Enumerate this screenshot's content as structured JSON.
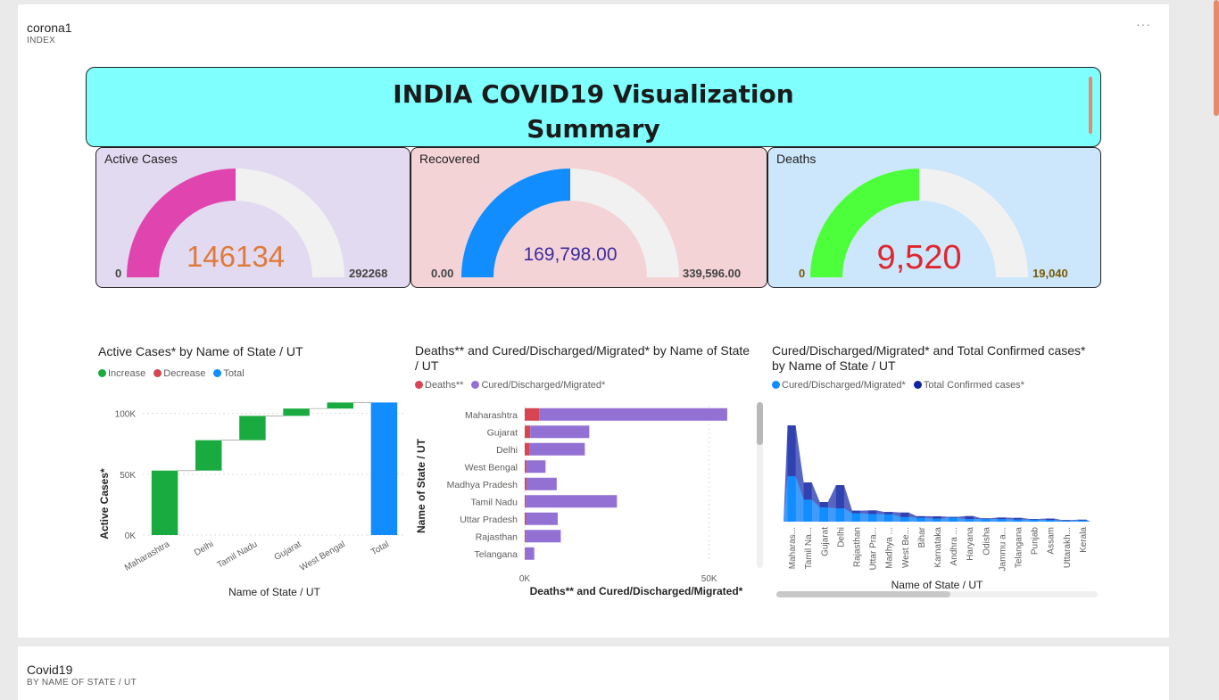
{
  "page": {
    "title": "corona1",
    "subtitle": "INDEX",
    "more_options": "···"
  },
  "banner": {
    "line1": "INDIA COVID19 Visualization",
    "line2": "Summary"
  },
  "kpis": [
    {
      "title": "Active Cases",
      "value": "146134",
      "min": "0",
      "max": "292268",
      "fraction": 0.5,
      "color": "#e044ae",
      "bg": "#e2daf1",
      "value_color": "#e07a3a"
    },
    {
      "title": "Recovered",
      "value": "169,798.00",
      "min": "0.00",
      "max": "339,596.00",
      "fraction": 0.5,
      "color": "#118dff",
      "bg": "#f4d3d6",
      "value_color": "#3b2c9e"
    },
    {
      "title": "Deaths",
      "value": "9,520",
      "min": "0",
      "max": "19,040",
      "fraction": 0.5,
      "color": "#4dff3a",
      "bg": "#cce6fc",
      "value_color": "#e0262d"
    }
  ],
  "chart_data": [
    {
      "type": "bar",
      "subtype": "waterfall",
      "title": "Active Cases* by Name of State / UT",
      "legend": [
        {
          "label": "Increase",
          "color": "#1aab40"
        },
        {
          "label": "Decrease",
          "color": "#d64550"
        },
        {
          "label": "Total",
          "color": "#118dff"
        }
      ],
      "categories": [
        "Maharashtra",
        "Delhi",
        "Tamil Nadu",
        "Gujarat",
        "West Bengal",
        "Total"
      ],
      "values": [
        53000,
        25000,
        20000,
        6000,
        5000,
        109000
      ],
      "xlabel": "Name of State / UT",
      "ylabel": "Active Cases*",
      "yticks": [
        {
          "value": 0,
          "label": "0K"
        },
        {
          "value": 50000,
          "label": "50K"
        },
        {
          "value": 100000,
          "label": "100K"
        }
      ],
      "ylim": [
        0,
        110000
      ]
    },
    {
      "type": "bar",
      "orientation": "horizontal",
      "stacked": true,
      "title": "Deaths** and Cured/Discharged/Migrated* by Name of State / UT",
      "legend": [
        {
          "label": "Deaths**",
          "color": "#d64550"
        },
        {
          "label": "Cured/Discharged/Migrated*",
          "color": "#9370d4"
        }
      ],
      "categories": [
        "Maharashtra",
        "Gujarat",
        "Delhi",
        "West Bengal",
        "Madhya Pradesh",
        "Tamil Nadu",
        "Uttar Pradesh",
        "Rajasthan",
        "Telangana"
      ],
      "series": [
        {
          "name": "Deaths**",
          "values": [
            3900,
            1500,
            1300,
            450,
            470,
            300,
            350,
            270,
            180
          ]
        },
        {
          "name": "Cured/Discharged/Migrated*",
          "values": [
            51000,
            16000,
            15000,
            5200,
            8200,
            24700,
            8600,
            9500,
            2400
          ]
        }
      ],
      "xlabel": "Deaths** and Cured/Discharged/Migrated*",
      "ylabel": "Name of State / UT",
      "xticks": [
        {
          "value": 0,
          "label": "0K"
        },
        {
          "value": 50000,
          "label": "50K"
        }
      ],
      "xlim": [
        0,
        60000
      ]
    },
    {
      "type": "area",
      "subtype": "ribbon",
      "title": "Cured/Discharged/Migrated* and Total Confirmed cases* by Name of State / UT",
      "legend": [
        {
          "label": "Cured/Discharged/Migrated*",
          "color": "#118dff"
        },
        {
          "label": "Total Confirmed cases*",
          "color": "#12239e"
        }
      ],
      "categories": [
        "Maharas...",
        "Tamil Na...",
        "Gujarat",
        "Delhi",
        "Rajasthan",
        "Uttar Pra...",
        "Madhya ...",
        "West Be...",
        "Bihar",
        "Karnataka",
        "Andhra ...",
        "Haryana",
        "Odisha",
        "Jammu a...",
        "Telangana",
        "Punjab",
        "Assam",
        "Uttarakh...",
        "Kerala"
      ],
      "series": [
        {
          "name": "Cured/Discharged/Migrated*",
          "values": [
            51000,
            24700,
            16000,
            15000,
            9500,
            8600,
            8200,
            5200,
            4400,
            3400,
            4400,
            3000,
            3000,
            2900,
            2400,
            2200,
            1900,
            1000,
            1400
          ]
        },
        {
          "name": "Total Confirmed cases*",
          "values": [
            108000,
            44000,
            22000,
            41000,
            12400,
            12600,
            10900,
            10200,
            6100,
            6000,
            5400,
            6300,
            3700,
            4600,
            4300,
            3000,
            3500,
            1800,
            2200
          ]
        }
      ],
      "xlabel": "Name of State / UT",
      "ylim": [
        0,
        110000
      ]
    }
  ],
  "second_card": {
    "title": "Covid19",
    "subtitle": "BY NAME OF STATE / UT"
  }
}
